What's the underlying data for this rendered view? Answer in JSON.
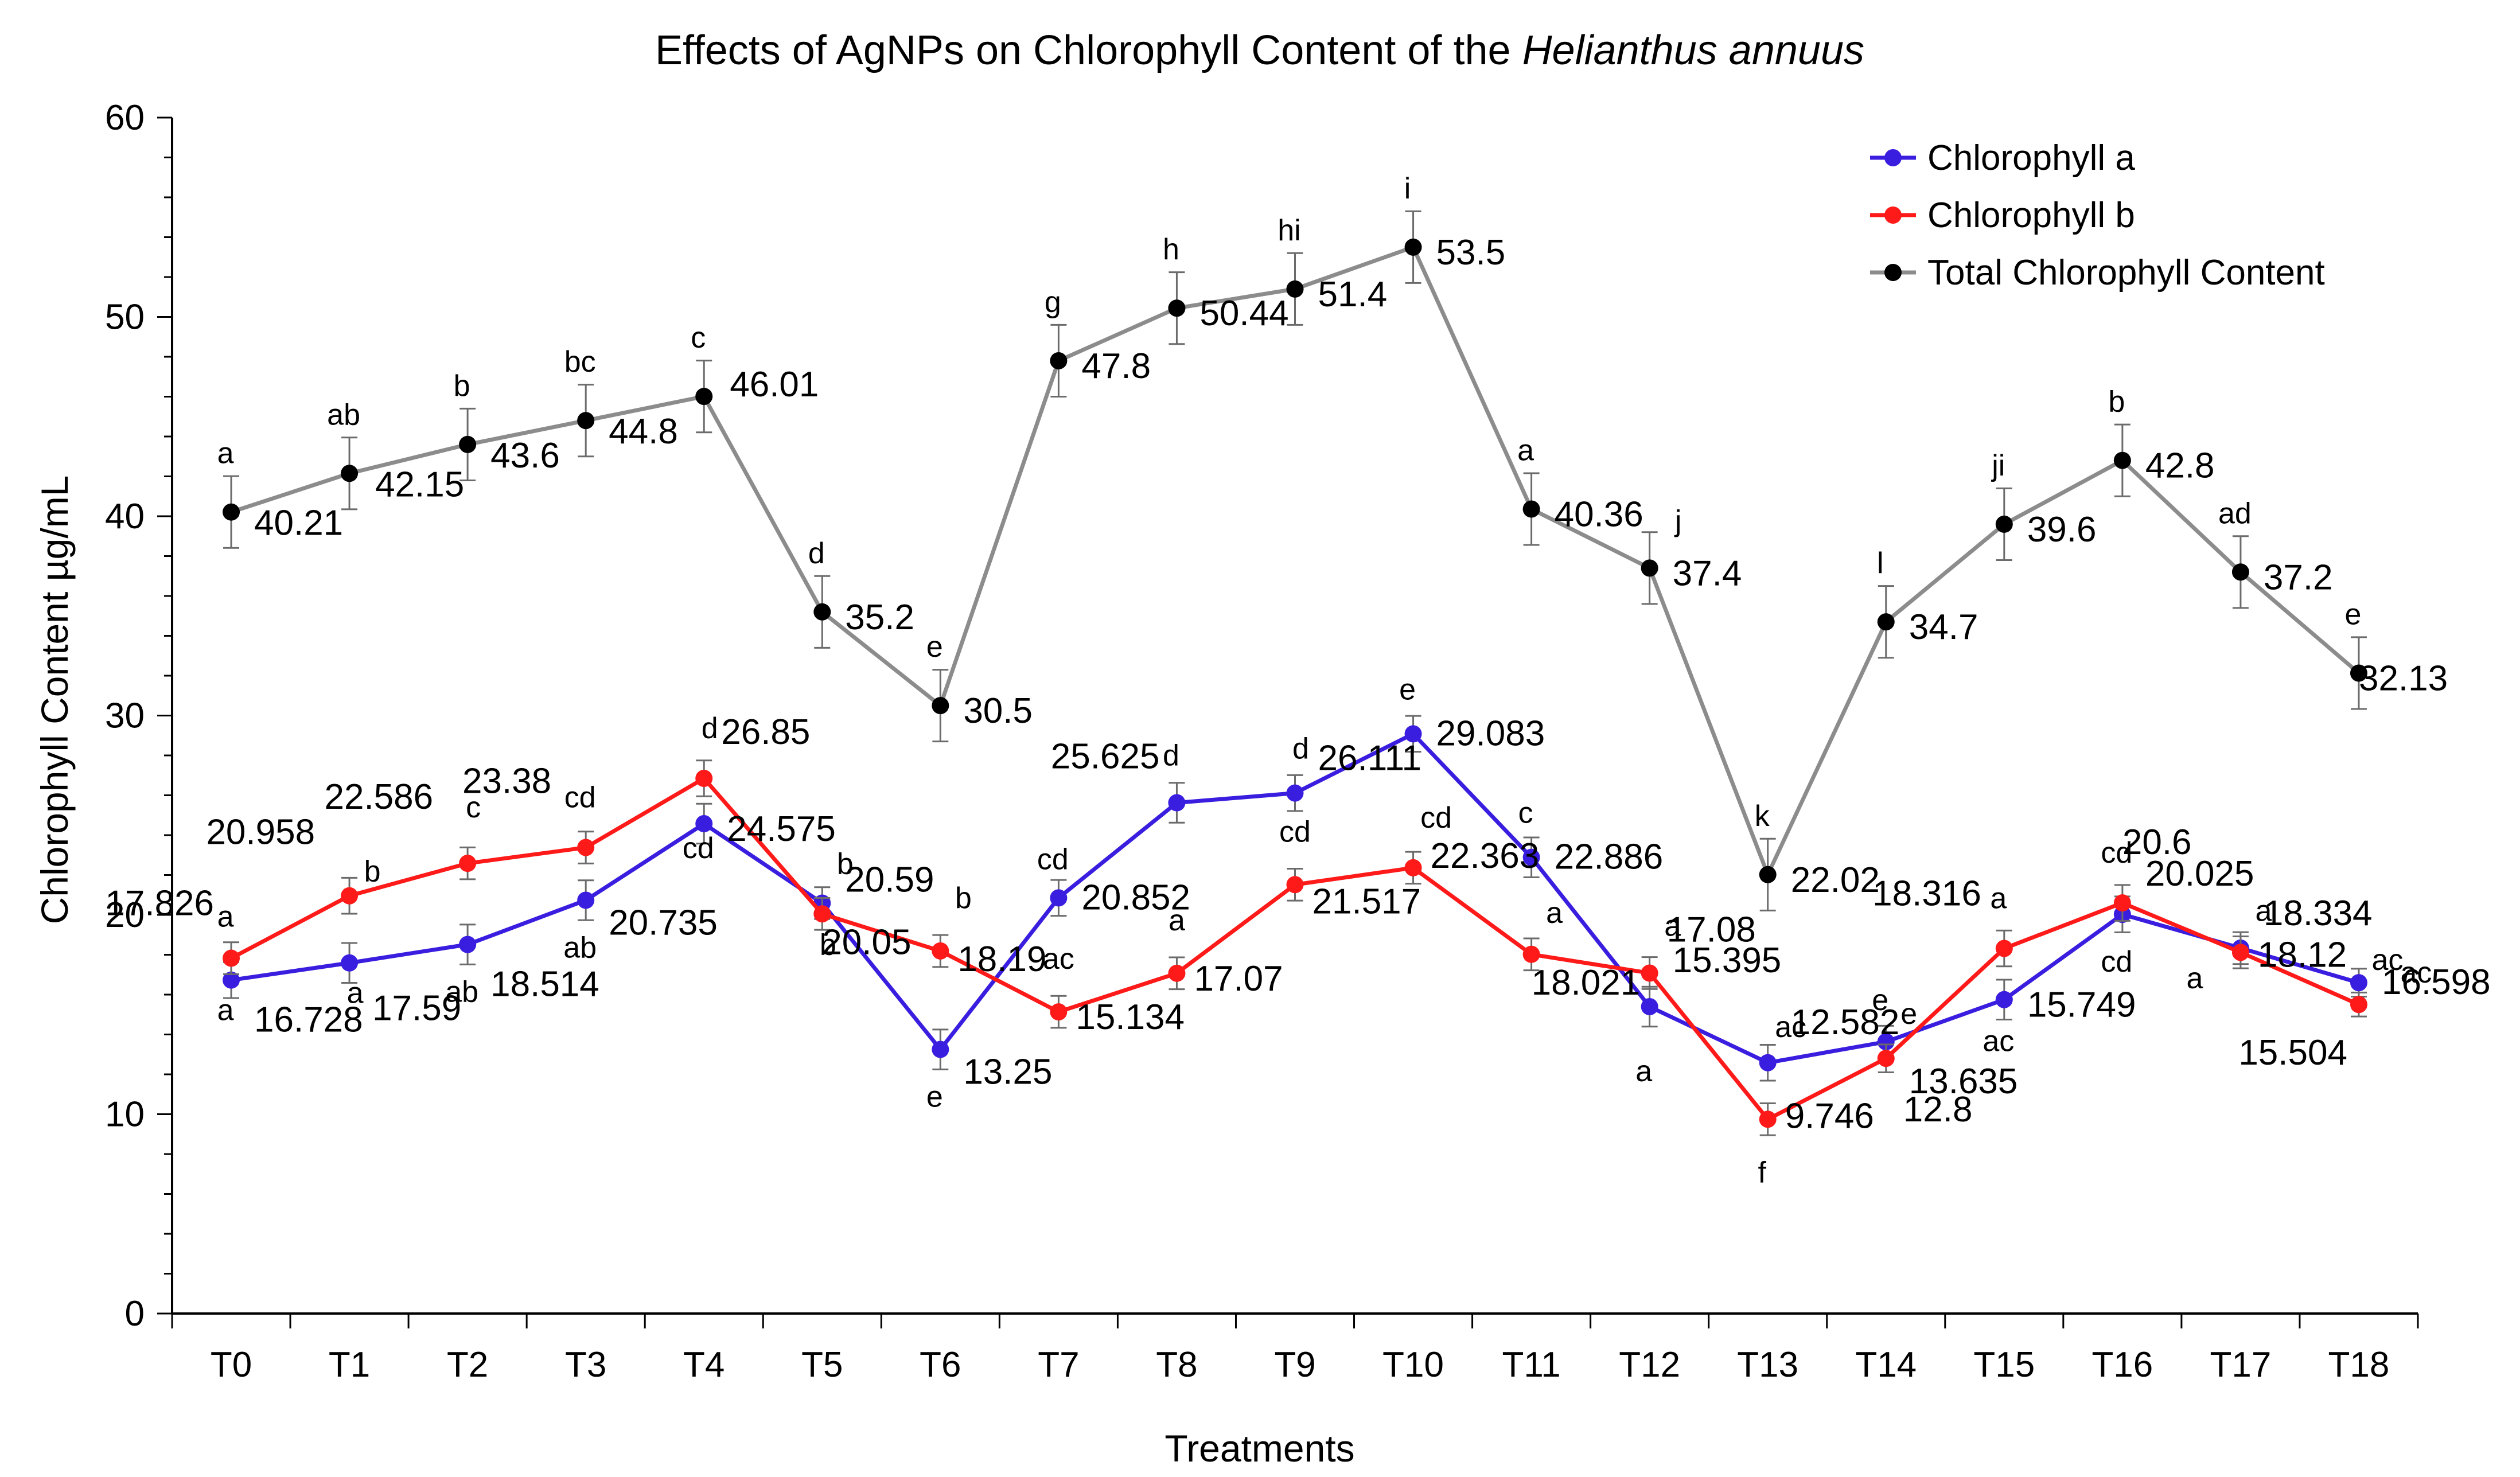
{
  "chart_data": {
    "type": "line",
    "title": "Effects of AgNPs on Chlorophyll Content of the",
    "title_italic": "Helianthus annuus",
    "xlabel": "Treatments",
    "ylabel": "Chlorophyll Content µg/mL",
    "ylim": [
      0,
      60
    ],
    "yticks": [
      "0",
      "10",
      "20",
      "30",
      "40",
      "50",
      "60"
    ],
    "categories": [
      "T0",
      "T1",
      "T2",
      "T3",
      "T4",
      "T5",
      "T6",
      "T7",
      "T8",
      "T9",
      "T10",
      "T11",
      "T12",
      "T13",
      "T14",
      "T15",
      "T16",
      "T17",
      "T18"
    ],
    "legend_position": "top-right",
    "grid": false,
    "series": [
      {
        "name": "Chlorophyll a",
        "color": "#3a1ee0",
        "values": [
          16.728,
          17.59,
          18.514,
          20.735,
          24.575,
          20.59,
          13.25,
          20.852,
          25.625,
          26.111,
          29.083,
          22.886,
          15.395,
          12.582,
          13.635,
          15.749,
          20.025,
          18.334,
          16.598
        ],
        "value_labels": [
          "16.728",
          "17.59",
          "18.514",
          "20.735",
          "24.575",
          "20.59",
          "13.25",
          "20.852",
          "25.625",
          "26.111",
          "29.083",
          "22.886",
          "15.395",
          "12.582",
          "13.635",
          "15.749",
          "20.025",
          "18.334",
          "16.598"
        ],
        "letters": [
          "a",
          "a",
          "ab",
          "ab",
          "cd",
          "b",
          "e",
          "cd",
          "d",
          "d",
          "e",
          "c",
          "a",
          "ac",
          "e",
          "ac",
          "cd",
          "a",
          "ac"
        ],
        "error": [
          0.9,
          1.0,
          1.0,
          1.0,
          1.0,
          0.8,
          1.0,
          0.9,
          1.0,
          0.9,
          0.9,
          1.0,
          1.0,
          0.9,
          0.8,
          1.0,
          0.9,
          0.8,
          0.7
        ]
      },
      {
        "name": "Chlorophyll b",
        "color": "#ff1a1a",
        "values": [
          17.826,
          20.958,
          22.586,
          23.38,
          26.85,
          20.05,
          18.19,
          15.134,
          17.07,
          21.517,
          22.363,
          18.021,
          17.08,
          9.746,
          12.8,
          18.316,
          20.6,
          18.12,
          15.504
        ],
        "value_labels": [
          "17.826",
          "20.958",
          "22.586",
          "23.38",
          "26.85",
          "20.05",
          "18.19",
          "15.134",
          "17.07",
          "21.517",
          "22.363",
          "18.021",
          "17.08",
          "9.746",
          "12.8",
          "18.316",
          "20.6",
          "18.12",
          "15.504"
        ],
        "letters": [
          "a",
          "b",
          "c",
          "cd",
          "d",
          "b",
          "b",
          "ac",
          "a",
          "cd",
          "cd",
          "a",
          "a",
          "f",
          "e",
          "a",
          "cd",
          "a",
          "ac"
        ],
        "error": [
          0.8,
          0.9,
          0.8,
          0.8,
          0.9,
          0.8,
          0.8,
          0.8,
          0.8,
          0.8,
          0.8,
          0.8,
          0.8,
          0.8,
          0.7,
          0.9,
          0.9,
          0.8,
          0.6
        ]
      },
      {
        "name": "Total Chlorophyll Content",
        "color": "#8c8c8c",
        "values": [
          40.21,
          42.15,
          43.6,
          44.8,
          46.01,
          35.2,
          30.5,
          47.8,
          50.44,
          51.4,
          53.5,
          40.36,
          37.4,
          22.02,
          34.7,
          39.6,
          42.8,
          37.2,
          32.13
        ],
        "value_labels": [
          "40.21",
          "42.15",
          "43.6",
          "44.8",
          "46.01",
          "35.2",
          "30.5",
          "47.8",
          "50.44",
          "51.4",
          "53.5",
          "40.36",
          "37.4",
          "22.02",
          "34.7",
          "39.6",
          "42.8",
          "37.2",
          "32.13"
        ],
        "letters": [
          "a",
          "ab",
          "b",
          "bc",
          "c",
          "d",
          "e",
          "g",
          "h",
          "hi",
          "i",
          "a",
          "j",
          "k",
          "l",
          "ji",
          "b",
          "ad",
          "e"
        ],
        "error": [
          1.8,
          1.8,
          1.8,
          1.8,
          1.8,
          1.8,
          1.8,
          1.8,
          1.8,
          1.8,
          1.8,
          1.8,
          1.8,
          1.8,
          1.8,
          1.8,
          1.8,
          1.8,
          1.8
        ]
      }
    ]
  }
}
